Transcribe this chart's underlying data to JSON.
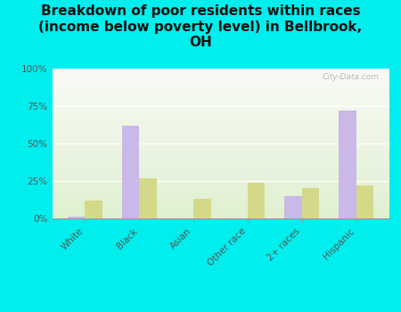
{
  "title": "Breakdown of poor residents within races\n(income below poverty level) in Bellbrook,\nOH",
  "categories": [
    "White",
    "Black",
    "Asian",
    "Other race",
    "2+ races",
    "Hispanic"
  ],
  "bellbrook_values": [
    1,
    62,
    0,
    0,
    15,
    72
  ],
  "ohio_values": [
    12,
    27,
    13,
    24,
    20,
    22
  ],
  "bellbrook_color": "#c9b8e8",
  "ohio_color": "#d4d98a",
  "background_color": "#00eeee",
  "plot_bg_color_top": "#f8faf5",
  "plot_bg_color_bottom": "#dff0d0",
  "ylabel_ticks": [
    "0%",
    "25%",
    "50%",
    "75%",
    "100%"
  ],
  "yticks": [
    0,
    25,
    50,
    75,
    100
  ],
  "ylim": [
    0,
    100
  ],
  "bar_width": 0.32,
  "title_fontsize": 11,
  "tick_fontsize": 7.5,
  "legend_fontsize": 9,
  "watermark": "City-Data.com"
}
